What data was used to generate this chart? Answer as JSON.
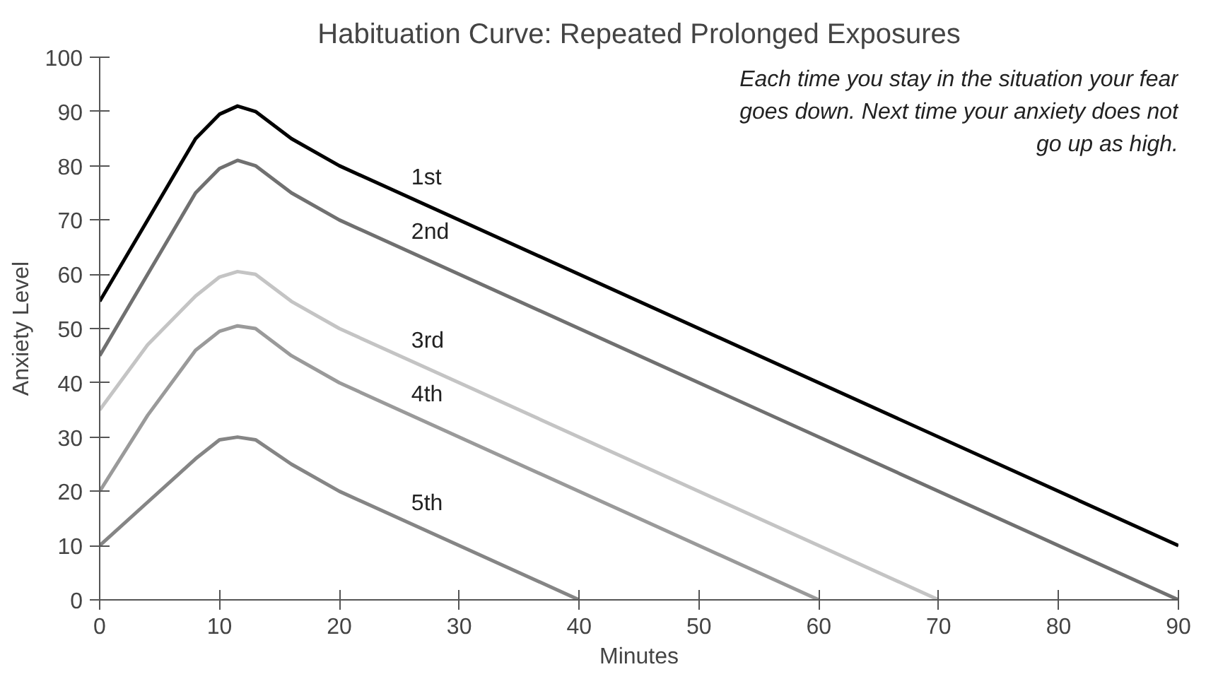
{
  "chart_data": {
    "type": "line",
    "title": "Habituation Curve: Repeated Prolonged Exposures",
    "xlabel": "Minutes",
    "ylabel": "Anxiety Level",
    "annotations": [
      "Each time you stay in the situation your fear\ngoes down. Next time your anxiety does not\ngo up as high."
    ],
    "xlim": [
      0,
      90
    ],
    "ylim": [
      0,
      100
    ],
    "xticks": [
      0,
      10,
      20,
      30,
      40,
      50,
      60,
      70,
      80,
      90
    ],
    "yticks": [
      0,
      10,
      20,
      30,
      40,
      50,
      60,
      70,
      80,
      90,
      100
    ],
    "grid": false,
    "marker": "none",
    "line_style": "solid",
    "series": [
      {
        "name": "1st",
        "color": "#000000",
        "x": [
          0,
          4,
          8,
          10,
          11.5,
          13,
          16,
          20,
          90
        ],
        "values": [
          55,
          70,
          85,
          89.5,
          91,
          90,
          85,
          80,
          10
        ]
      },
      {
        "name": "2nd",
        "color": "#707070",
        "x": [
          0,
          4,
          8,
          10,
          11.5,
          13,
          16,
          20,
          90
        ],
        "values": [
          45,
          60,
          75,
          79.5,
          81,
          80,
          75,
          70,
          0
        ]
      },
      {
        "name": "3rd",
        "color": "#c4c4c4",
        "x": [
          0,
          4,
          8,
          10,
          11.5,
          13,
          16,
          20,
          70
        ],
        "values": [
          35,
          47,
          56,
          59.5,
          60.5,
          60,
          55,
          50,
          0
        ]
      },
      {
        "name": "4th",
        "color": "#9a9a9a",
        "x": [
          0,
          4,
          8,
          10,
          11.5,
          13,
          16,
          20,
          60
        ],
        "values": [
          20,
          34,
          46,
          49.5,
          50.5,
          50,
          45,
          40,
          0
        ]
      },
      {
        "name": "5th",
        "color": "#858585",
        "x": [
          0,
          4,
          8,
          10,
          11.5,
          13,
          16,
          20,
          40
        ],
        "values": [
          10,
          18,
          26,
          29.5,
          30,
          29.5,
          25,
          20,
          0
        ]
      }
    ]
  }
}
